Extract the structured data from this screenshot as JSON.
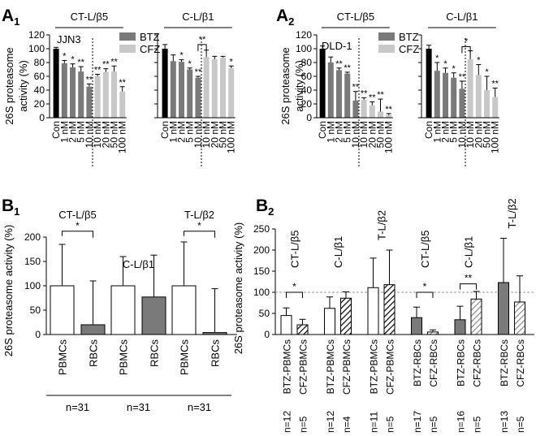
{
  "chart_data": [
    {
      "id": "A1",
      "type": "bar",
      "panel_label": "A",
      "panel_sub": "1",
      "cell_line": "JJN3",
      "ylabel_1": "26S proteasome",
      "ylabel_2": "activity (%)",
      "ylim": [
        0,
        120
      ],
      "yticks": [
        "0",
        "20",
        "40",
        "60",
        "80",
        "100",
        "120"
      ],
      "legend": [
        {
          "label": "BTZ",
          "color": "#7a7a7a"
        },
        {
          "label": "CFZ",
          "color": "#c8c8c8"
        }
      ],
      "groups": [
        {
          "title": "CT-L/β5",
          "bars": [
            {
              "label": "Con",
              "value": 100,
              "error": 2,
              "color": "#000000",
              "sig": ""
            },
            {
              "label": "1 nM",
              "value": 79,
              "error": 4,
              "color": "#7a7a7a",
              "sig": "*"
            },
            {
              "label": "2 nM",
              "value": 73,
              "error": 5,
              "color": "#7a7a7a",
              "sig": "*"
            },
            {
              "label": "5 nM",
              "value": 67,
              "error": 7,
              "color": "#7a7a7a",
              "sig": "**"
            },
            {
              "label": "10 nM",
              "value": 45,
              "error": 4,
              "color": "#7a7a7a",
              "sig": "**"
            },
            {
              "label": "10 nM",
              "value": 60,
              "error": 3,
              "color": "#c8c8c8",
              "sig": "**"
            },
            {
              "label": "20 nM",
              "value": 66,
              "error": 5,
              "color": "#c8c8c8",
              "sig": "**"
            },
            {
              "label": "50 nM",
              "value": 67,
              "error": 8,
              "color": "#c8c8c8",
              "sig": "**"
            },
            {
              "label": "100 nM",
              "value": 38,
              "error": 7,
              "color": "#c8c8c8",
              "sig": "**"
            }
          ]
        },
        {
          "title": "C-L/β1",
          "bars": [
            {
              "label": "Con",
              "value": 100,
              "error": 6,
              "color": "#000000",
              "sig": ""
            },
            {
              "label": "1 nM",
              "value": 82,
              "error": 9,
              "color": "#7a7a7a",
              "sig": ""
            },
            {
              "label": "2 nM",
              "value": 81,
              "error": 3,
              "color": "#7a7a7a",
              "sig": "*"
            },
            {
              "label": "5 nM",
              "value": 70,
              "error": 2,
              "color": "#7a7a7a",
              "sig": "*"
            },
            {
              "label": "10 nM",
              "value": 58,
              "error": 2,
              "color": "#7a7a7a",
              "sig": "**"
            },
            {
              "label": "10 nM",
              "value": 88,
              "error": 10,
              "color": "#c8c8c8",
              "sig": ""
            },
            {
              "label": "20 nM",
              "value": 85,
              "error": 4,
              "color": "#c8c8c8",
              "sig": ""
            },
            {
              "label": "50 nM",
              "value": 87,
              "error": 2,
              "color": "#c8c8c8",
              "sig": ""
            },
            {
              "label": "100 nM",
              "value": 72,
              "error": 3,
              "color": "#c8c8c8",
              "sig": "*"
            }
          ]
        }
      ],
      "brackets": [
        {
          "group": 1,
          "from": 4,
          "to": 5,
          "level": 106,
          "label": "**"
        }
      ]
    },
    {
      "id": "A2",
      "type": "bar",
      "panel_label": "A",
      "panel_sub": "2",
      "cell_line": "DLD-1",
      "ylabel_1": "26S proteasome",
      "ylabel_2": "activity (%)",
      "ylim": [
        0,
        120
      ],
      "yticks": [
        "0",
        "20",
        "40",
        "60",
        "80",
        "100",
        "120"
      ],
      "legend": [
        {
          "label": "BTZ",
          "color": "#7a7a7a"
        },
        {
          "label": "CFZ",
          "color": "#c8c8c8"
        }
      ],
      "groups": [
        {
          "title": "CT-L/β5",
          "bars": [
            {
              "label": "Con",
              "value": 100,
              "error": 4,
              "color": "#000000",
              "sig": ""
            },
            {
              "label": "1 nM",
              "value": 80,
              "error": 8,
              "color": "#7a7a7a",
              "sig": ""
            },
            {
              "label": "2 nM",
              "value": 69,
              "error": 3,
              "color": "#7a7a7a",
              "sig": "**"
            },
            {
              "label": "5 nM",
              "value": 64,
              "error": 2,
              "color": "#7a7a7a",
              "sig": "**"
            },
            {
              "label": "10 nM",
              "value": 25,
              "error": 13,
              "color": "#7a7a7a",
              "sig": "**"
            },
            {
              "label": "10 nM",
              "value": 26,
              "error": 3,
              "color": "#c8c8c8",
              "sig": "**"
            },
            {
              "label": "20 nM",
              "value": 18,
              "error": 5,
              "color": "#c8c8c8",
              "sig": "**"
            },
            {
              "label": "50 nM",
              "value": 9,
              "error": 18,
              "color": "#c8c8c8",
              "sig": "**"
            },
            {
              "label": "100 nM",
              "value": 4,
              "error": 2,
              "color": "#c8c8c8",
              "sig": "**"
            }
          ]
        },
        {
          "title": "C-L/β1",
          "bars": [
            {
              "label": "Con",
              "value": 100,
              "error": 5,
              "color": "#000000",
              "sig": ""
            },
            {
              "label": "1 nM",
              "value": 68,
              "error": 12,
              "color": "#7a7a7a",
              "sig": "*"
            },
            {
              "label": "2 nM",
              "value": 65,
              "error": 7,
              "color": "#7a7a7a",
              "sig": "*"
            },
            {
              "label": "5 nM",
              "value": 58,
              "error": 7,
              "color": "#7a7a7a",
              "sig": "*"
            },
            {
              "label": "10 nM",
              "value": 42,
              "error": 11,
              "color": "#7a7a7a",
              "sig": "**"
            },
            {
              "label": "10 nM",
              "value": 85,
              "error": 12,
              "color": "#c8c8c8",
              "sig": ""
            },
            {
              "label": "20 nM",
              "value": 62,
              "error": 15,
              "color": "#c8c8c8",
              "sig": "*"
            },
            {
              "label": "50 nM",
              "value": 40,
              "error": 20,
              "color": "#c8c8c8",
              "sig": "*"
            },
            {
              "label": "100 nM",
              "value": 30,
              "error": 13,
              "color": "#c8c8c8",
              "sig": "**"
            }
          ]
        }
      ],
      "brackets": [
        {
          "group": 1,
          "from": 4,
          "to": 5,
          "level": 103,
          "label": "*"
        }
      ]
    },
    {
      "id": "B1",
      "type": "bar",
      "panel_label": "B",
      "panel_sub": "1",
      "ylabel": "26S proteasome activity (%)",
      "ylim": [
        0,
        200
      ],
      "yticks": [
        "0",
        "50",
        "100",
        "150",
        "200"
      ],
      "groups": [
        {
          "title": "CT-L/β5",
          "n": "n=31",
          "bars": [
            {
              "label": "PBMCs",
              "value": 100,
              "error": 85,
              "fill": "#ffffff"
            },
            {
              "label": "RBCs",
              "value": 20,
              "error": 90,
              "fill": "#7a7a7a"
            }
          ],
          "bracket": {
            "label": "*",
            "level": 212
          }
        },
        {
          "title": "C-L/β1",
          "n": "n=31",
          "bars": [
            {
              "label": "PBMCs",
              "value": 100,
              "error": 60,
              "fill": "#ffffff"
            },
            {
              "label": "RBCs",
              "value": 77,
              "error": 86,
              "fill": "#7a7a7a"
            }
          ]
        },
        {
          "title": "T-L/β2",
          "n": "n=31",
          "bars": [
            {
              "label": "PBMCs",
              "value": 100,
              "error": 90,
              "fill": "#ffffff"
            },
            {
              "label": "RBCs",
              "value": 4,
              "error": 90,
              "fill": "#7a7a7a"
            }
          ],
          "bracket": {
            "label": "*",
            "level": 212
          }
        }
      ]
    },
    {
      "id": "B2",
      "type": "bar",
      "panel_label": "B",
      "panel_sub": "2",
      "ylabel": "26S proteasome activity (%)",
      "ylim": [
        0,
        250
      ],
      "yticks": [
        "0",
        "50",
        "100",
        "150",
        "200",
        "250"
      ],
      "reference_line": 100,
      "bars": [
        {
          "label": "BTZ-PBMCs",
          "value": 45,
          "error": 18,
          "fill": "white",
          "n": "n=12"
        },
        {
          "label": "CFZ-PBMCs",
          "value": 23,
          "error": 13,
          "fill": "hatch",
          "n": "n=5"
        },
        {
          "label": "BTZ-PBMCs",
          "value": 62,
          "error": 27,
          "fill": "white",
          "n": "n=12"
        },
        {
          "label": "CFZ-PBMCs",
          "value": 86,
          "error": 15,
          "fill": "hatch",
          "n": "n=4"
        },
        {
          "label": "BTZ-PBMCs",
          "value": 111,
          "error": 70,
          "fill": "white",
          "n": "n=11"
        },
        {
          "label": "CFZ-PBMCs",
          "value": 118,
          "error": 82,
          "fill": "hatch",
          "n": "n=5"
        },
        {
          "label": "BTZ-RBCs",
          "value": 40,
          "error": 25,
          "fill": "gray",
          "n": "n=17"
        },
        {
          "label": "CFZ-RBCs",
          "value": 6,
          "error": 5,
          "fill": "hatchgray",
          "n": "n=5"
        },
        {
          "label": "BTZ-RBCs",
          "value": 35,
          "error": 32,
          "fill": "gray",
          "n": "n=16"
        },
        {
          "label": "CFZ-RBCs",
          "value": 84,
          "error": 18,
          "fill": "hatchgray",
          "n": "n=5"
        },
        {
          "label": "BTZ-RBCs",
          "value": 123,
          "error": 105,
          "fill": "gray",
          "n": "n=13"
        },
        {
          "label": "CFZ-RBCs",
          "value": 77,
          "error": 62,
          "fill": "hatchgray",
          "n": "n=5"
        }
      ],
      "group_titles": [
        {
          "text": "CT-L/β5",
          "pair": 0
        },
        {
          "text": "C-L/β1",
          "pair": 1
        },
        {
          "text": "T-L/β2",
          "pair": 2
        },
        {
          "text": "CT-L/β5",
          "pair": 3
        },
        {
          "text": "C-L/β1",
          "pair": 4
        },
        {
          "text": "T-L/β2",
          "pair": 5
        }
      ],
      "brackets": [
        {
          "pair": 0,
          "label": "*",
          "level": 100
        },
        {
          "pair": 3,
          "label": "*",
          "level": 100
        },
        {
          "pair": 4,
          "label": "**",
          "level": 120
        }
      ]
    }
  ]
}
